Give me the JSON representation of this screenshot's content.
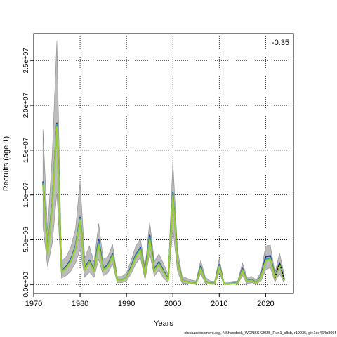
{
  "chart_data": {
    "type": "line",
    "xlabel": "Years",
    "ylabel": "Recruits (age 1)",
    "annotation": "-0.35",
    "xlim": [
      1970,
      2026
    ],
    "ylim": [
      -1000000,
      28000000
    ],
    "x_ticks": [
      1970,
      1980,
      1990,
      2000,
      2010,
      2020
    ],
    "y_ticks": [
      0,
      5000000,
      10000000,
      15000000,
      20000000,
      25000000
    ],
    "y_tick_labels": [
      "0.0e+00",
      "5.0e+06",
      "1.0e+07",
      "1.5e+07",
      "2.0e+07",
      "2.5e+07"
    ],
    "grid": true,
    "years": [
      1972,
      1973,
      1974,
      1975,
      1976,
      1977,
      1978,
      1979,
      1980,
      1981,
      1982,
      1983,
      1984,
      1985,
      1986,
      1987,
      1988,
      1989,
      1990,
      1991,
      1992,
      1993,
      1994,
      1995,
      1996,
      1997,
      1998,
      1999,
      2000,
      2001,
      2002,
      2003,
      2004,
      2005,
      2006,
      2007,
      2008,
      2009,
      2010,
      2011,
      2012,
      2013,
      2014,
      2015,
      2016,
      2017,
      2018,
      2019,
      2020,
      2021,
      2022,
      2023,
      2024
    ],
    "series": [
      {
        "values": [
          11500000,
          3800000,
          9000000,
          18000000,
          1500000,
          2000000,
          2800000,
          4300000,
          7500000,
          1800000,
          2700000,
          1600000,
          5000000,
          1800000,
          2200000,
          3400000,
          500000,
          500000,
          800000,
          2000000,
          3300000,
          4100000,
          1200000,
          5500000,
          1700000,
          2500000,
          1500000,
          600000,
          10300000,
          2700000,
          450000,
          350000,
          200000,
          150000,
          2000000,
          400000,
          150000,
          150000,
          2200000,
          100000,
          100000,
          150000,
          150000,
          1800000,
          400000,
          550000,
          200000,
          950000,
          3100000,
          3200000,
          800000,
          2400000,
          600000
        ],
        "color": "#2b2b8a"
      },
      {
        "values": [
          11400000,
          3700000,
          8900000,
          17900000,
          1500000,
          1900000,
          2700000,
          4200000,
          7400000,
          1700000,
          2600000,
          1500000,
          4800000,
          1700000,
          2100000,
          3300000,
          500000,
          500000,
          800000,
          1900000,
          3200000,
          4000000,
          1100000,
          5300000,
          1600000,
          2400000,
          1400000,
          550000,
          10200000,
          2600000,
          450000,
          350000,
          200000,
          150000,
          1900000,
          400000,
          150000,
          150000,
          2100000,
          100000,
          100000,
          150000,
          150000,
          1700000,
          400000,
          500000,
          200000,
          900000,
          2800000,
          3000000,
          750000,
          2300000,
          550000
        ],
        "color": "#2a9fd6"
      },
      {
        "values": [
          11300000,
          3600000,
          8800000,
          17700000,
          1450000,
          1900000,
          2650000,
          4100000,
          7300000,
          1650000,
          2550000,
          1500000,
          4600000,
          1650000,
          2050000,
          3250000,
          480000,
          480000,
          780000,
          1850000,
          3100000,
          3900000,
          1100000,
          5100000,
          1550000,
          2350000,
          1380000,
          540000,
          10000000,
          2550000,
          440000,
          340000,
          190000,
          140000,
          1850000,
          380000,
          140000,
          140000,
          2050000,
          90000,
          90000,
          140000,
          140000,
          1650000,
          380000,
          480000,
          190000,
          850000,
          2700000,
          2900000,
          720000,
          2250000,
          500000
        ],
        "color": "#27a16b"
      },
      {
        "values": [
          11200000,
          3500000,
          8700000,
          17600000,
          1400000,
          1850000,
          2600000,
          4050000,
          7200000,
          1600000,
          2500000,
          1450000,
          4500000,
          1600000,
          2000000,
          3200000,
          470000,
          470000,
          770000,
          1800000,
          3050000,
          3850000,
          1050000,
          5000000,
          1500000,
          2300000,
          1350000,
          530000,
          9900000,
          2500000,
          430000,
          330000,
          180000,
          130000,
          1800000,
          370000,
          130000,
          130000,
          2000000,
          90000,
          90000,
          130000,
          130000,
          1600000,
          370000,
          470000,
          180000,
          820000,
          2650000,
          2850000,
          700000,
          2200000,
          450000
        ],
        "color": "#8bc34a"
      },
      {
        "values": [
          11100000,
          3450000,
          8600000,
          17500000,
          1380000,
          1820000,
          2550000,
          4000000,
          7100000,
          1580000,
          2450000,
          1430000,
          4400000,
          1580000,
          1980000,
          3150000,
          460000,
          460000,
          760000,
          1780000,
          3000000,
          3800000,
          1030000,
          4900000,
          1480000,
          2280000,
          1330000,
          520000,
          9800000,
          2480000,
          420000,
          320000,
          170000,
          120000,
          1780000,
          360000,
          120000,
          120000,
          1980000,
          85000,
          85000,
          120000,
          120000,
          1580000,
          360000,
          460000,
          170000,
          800000,
          2600000,
          2800000,
          680000,
          2150000,
          420000
        ],
        "color": "#9acd32"
      },
      {
        "values": [
          null,
          null,
          null,
          null,
          null,
          null,
          null,
          null,
          null,
          null,
          null,
          null,
          null,
          null,
          null,
          null,
          null,
          null,
          null,
          null,
          null,
          null,
          null,
          null,
          null,
          null,
          null,
          null,
          null,
          null,
          null,
          null,
          null,
          null,
          null,
          null,
          null,
          null,
          null,
          null,
          null,
          null,
          null,
          null,
          null,
          null,
          null,
          null,
          null,
          null,
          750000,
          2400000,
          550000
        ],
        "color": "#000000",
        "dashed": true
      }
    ],
    "band_upper": [
      17300000,
      6000000,
      14500000,
      27200000,
      2600000,
      3100000,
      4200000,
      6200000,
      11500000,
      3000000,
      4300000,
      2500000,
      6800000,
      2800000,
      3100000,
      4500000,
      900000,
      900000,
      1300000,
      2700000,
      4300000,
      5100000,
      1900000,
      7000000,
      2600000,
      3400000,
      2300000,
      1100000,
      13800000,
      3900000,
      900000,
      700000,
      500000,
      400000,
      2700000,
      800000,
      400000,
      350000,
      2900000,
      300000,
      300000,
      350000,
      400000,
      2400000,
      800000,
      900000,
      500000,
      1400000,
      4300000,
      4400000,
      1300000,
      3500000,
      1100000
    ],
    "band_lower": [
      6500000,
      2000000,
      4600000,
      10200000,
      700000,
      1000000,
      1500000,
      2400000,
      3900000,
      800000,
      1400000,
      800000,
      2800000,
      1000000,
      1300000,
      2300000,
      200000,
      200000,
      400000,
      1200000,
      2300000,
      3000000,
      500000,
      3500000,
      900000,
      1600000,
      700000,
      200000,
      6200000,
      1500000,
      150000,
      100000,
      50000,
      20000,
      1200000,
      100000,
      20000,
      20000,
      1300000,
      10000,
      10000,
      20000,
      20000,
      1000000,
      100000,
      200000,
      50000,
      400000,
      1600000,
      1900000,
      300000,
      1200000,
      150000
    ]
  },
  "footer_text": "stockassessment.org, NShaddock_WGNSSK2025_Run1_allsb, r19036, git:1cc464b806f"
}
